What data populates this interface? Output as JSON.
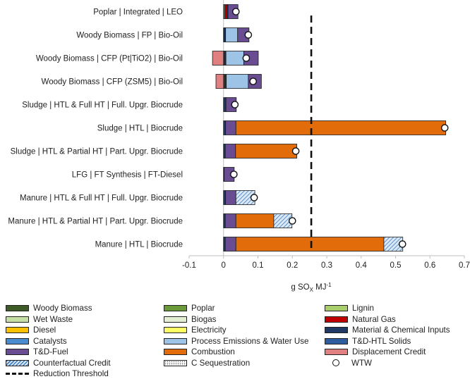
{
  "chart_data": {
    "type": "bar",
    "orientation": "horizontal",
    "stacked": true,
    "xlabel": "g SO",
    "xlabel_sub": "X",
    "xlabel_unit": " MJ",
    "xlabel_sup": "-1",
    "xlim": [
      -0.1,
      0.7
    ],
    "xticks": [
      "-0.1",
      "0",
      "0.1",
      "0.2",
      "0.3",
      "0.4",
      "0.5",
      "0.6",
      "0.7"
    ],
    "reduction_threshold": 0.255,
    "categories": [
      "Poplar | Integrated | LEO",
      "Woody Biomass | FP | Bio-Oil",
      "Woody Biomass | CFP (Pt|TiO2) | Bio-Oil",
      "Woody Biomass | CFP (ZSM5) | Bio-Oil",
      "Sludge | HTL & Full HT | Full. Upgr. Biocrude",
      "Sludge | HTL | Biocrude",
      "Sludge | HTL & Partial HT | Part. Upgr. Biocrude",
      "LFG | FT Synthesis | FT-Diesel",
      "Manure | HTL & Full HT | Full. Upgr. Biocrude",
      "Manure | HTL & Partial HT | Part. Upgr. Biocrude",
      "Manure | HTL | Biocrude"
    ],
    "series": [
      {
        "name": "Woody Biomass",
        "color": "#3d5a27",
        "values": [
          0,
          0.002,
          0.003,
          0.004,
          0,
          0,
          0,
          0,
          0,
          0,
          0
        ]
      },
      {
        "name": "Poplar",
        "color": "#6a9a3a",
        "values": [
          0.004,
          0,
          0,
          0,
          0,
          0,
          0,
          0,
          0,
          0,
          0
        ]
      },
      {
        "name": "Lignin",
        "color": "#a9cf6d",
        "values": [
          0,
          0,
          0,
          0,
          0,
          0,
          0,
          0,
          0,
          0,
          0
        ]
      },
      {
        "name": "Wet Waste",
        "color": "#c5dfa5",
        "values": [
          0,
          0,
          0,
          0,
          0,
          0,
          0,
          0,
          0,
          0,
          0
        ]
      },
      {
        "name": "Biogas",
        "color": "#e3efd2",
        "values": [
          0,
          0,
          0,
          0,
          0,
          0,
          0,
          0,
          0,
          0,
          0
        ]
      },
      {
        "name": "Natural Gas",
        "color": "#c00000",
        "values": [
          0.006,
          0,
          0,
          0,
          0,
          0,
          0,
          0,
          0,
          0,
          0
        ]
      },
      {
        "name": "Diesel",
        "color": "#ffc000",
        "values": [
          0,
          0,
          0,
          0,
          0,
          0,
          0,
          0,
          0,
          0,
          0
        ]
      },
      {
        "name": "Electricity",
        "color": "#ffff66",
        "values": [
          0,
          0,
          0,
          0,
          0,
          0,
          0,
          0,
          0,
          0,
          0
        ]
      },
      {
        "name": "Material & Chemical Inputs",
        "color": "#1f3864",
        "values": [
          0.003,
          0.004,
          0.004,
          0.004,
          0.007,
          0.006,
          0.005,
          0.002,
          0.006,
          0.005,
          0.005
        ]
      },
      {
        "name": "Catalysts",
        "color": "#4a8bd0",
        "values": [
          0,
          0,
          0,
          0,
          0,
          0,
          0,
          0,
          0,
          0,
          0
        ]
      },
      {
        "name": "Process Emissions & Water Use",
        "color": "#9dc3e6",
        "values": [
          0,
          0.035,
          0.052,
          0.064,
          0,
          0,
          0,
          0,
          0,
          0,
          0
        ]
      },
      {
        "name": "T&D-HTL Solids",
        "color": "#2e5d9f",
        "values": [
          0,
          0,
          0,
          0,
          0,
          0,
          0,
          0,
          0,
          0,
          0
        ]
      },
      {
        "name": "T&D-Fuel",
        "color": "#6a4c93",
        "values": [
          0.029,
          0.033,
          0.042,
          0.038,
          0.03,
          0.03,
          0.03,
          0.029,
          0.03,
          0.031,
          0.031
        ]
      },
      {
        "name": "Combustion",
        "color": "#e26b0a",
        "values": [
          0,
          0,
          0,
          0,
          0,
          0.61,
          0.178,
          0,
          0,
          0.11,
          0.43
        ]
      },
      {
        "name": "Displacement Credit",
        "color": "#e08080",
        "values": [
          0,
          0,
          -0.032,
          -0.022,
          0,
          0,
          0,
          0,
          0,
          0,
          0
        ]
      },
      {
        "name": "Counterfactual Credit",
        "color": "#4f81bd",
        "pattern": "hatch",
        "values": [
          0,
          0,
          0,
          0,
          0,
          0,
          0,
          0,
          0.055,
          0.053,
          0.055
        ]
      },
      {
        "name": "C Sequestration",
        "color": "#ffffff",
        "pattern": "dots",
        "values": [
          0,
          0,
          0,
          0,
          0,
          0,
          0,
          0,
          0,
          0,
          0
        ]
      }
    ],
    "wtw": [
      0.036,
      0.072,
      0.066,
      0.086,
      0.033,
      0.643,
      0.21,
      0.03,
      0.089,
      0.2,
      0.52
    ],
    "legend_rows": [
      [
        "Woody Biomass",
        "Poplar",
        "Lignin"
      ],
      [
        "Wet Waste",
        "Biogas",
        "Natural Gas"
      ],
      [
        "Diesel",
        "Electricity",
        "Material & Chemical Inputs"
      ],
      [
        "Catalysts",
        "Process Emissions & Water Use",
        "T&D-HTL Solids"
      ],
      [
        "T&D-Fuel",
        "Combustion",
        "Displacement Credit"
      ],
      [
        "Counterfactual Credit",
        "C Sequestration",
        "WTW"
      ],
      [
        "Reduction Threshold"
      ]
    ],
    "wtw_label": "WTW",
    "threshold_label": "Reduction Threshold"
  }
}
